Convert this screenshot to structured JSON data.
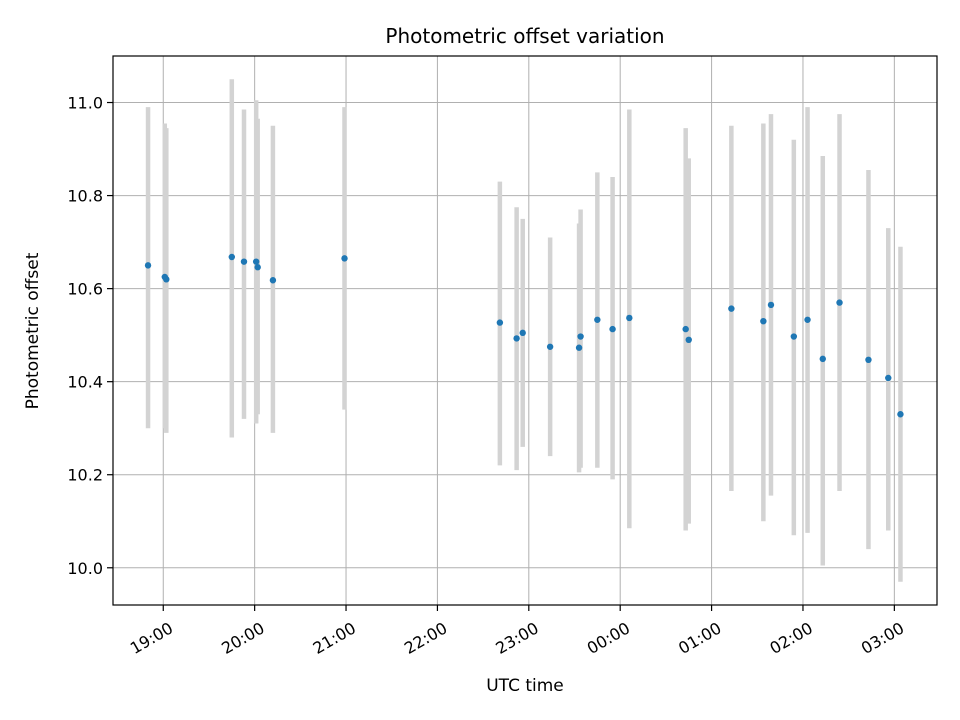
{
  "chart_data": {
    "type": "scatter",
    "title": "Photometric offset variation",
    "xlabel": "UTC time",
    "ylabel": "Photometric offset",
    "x_unit": "UTC time (HH:MM)",
    "xlim": [
      "18:27",
      "03:28"
    ],
    "ylim": [
      9.92,
      11.1
    ],
    "x_ticks": [
      "19:00",
      "20:00",
      "21:00",
      "22:00",
      "23:00",
      "00:00",
      "01:00",
      "02:00",
      "03:00"
    ],
    "y_ticks": [
      10.0,
      10.2,
      10.4,
      10.6,
      10.8,
      11.0
    ],
    "y_tick_labels": [
      "10.0",
      "10.2",
      "10.4",
      "10.6",
      "10.8",
      "11.0"
    ],
    "grid": true,
    "marker_color": "#1f77b4",
    "errorbar_color": "#d3d3d3",
    "points": [
      {
        "t": "18:50",
        "y": 10.65,
        "ylo": 10.3,
        "yhi": 10.99
      },
      {
        "t": "19:01",
        "y": 10.625,
        "ylo": 10.3,
        "yhi": 10.955
      },
      {
        "t": "19:02",
        "y": 10.62,
        "ylo": 10.29,
        "yhi": 10.945
      },
      {
        "t": "19:45",
        "y": 10.668,
        "ylo": 10.28,
        "yhi": 11.05
      },
      {
        "t": "19:53",
        "y": 10.658,
        "ylo": 10.32,
        "yhi": 10.985
      },
      {
        "t": "20:01",
        "y": 10.658,
        "ylo": 10.31,
        "yhi": 11.005
      },
      {
        "t": "20:02",
        "y": 10.646,
        "ylo": 10.33,
        "yhi": 10.965
      },
      {
        "t": "20:12",
        "y": 10.618,
        "ylo": 10.29,
        "yhi": 10.95
      },
      {
        "t": "20:59",
        "y": 10.665,
        "ylo": 10.34,
        "yhi": 10.99
      },
      {
        "t": "22:41",
        "y": 10.527,
        "ylo": 10.22,
        "yhi": 10.83
      },
      {
        "t": "22:52",
        "y": 10.493,
        "ylo": 10.21,
        "yhi": 10.775
      },
      {
        "t": "22:56",
        "y": 10.505,
        "ylo": 10.26,
        "yhi": 10.75
      },
      {
        "t": "23:14",
        "y": 10.475,
        "ylo": 10.24,
        "yhi": 10.71
      },
      {
        "t": "23:33",
        "y": 10.473,
        "ylo": 10.205,
        "yhi": 10.74
      },
      {
        "t": "23:34",
        "y": 10.497,
        "ylo": 10.215,
        "yhi": 10.77
      },
      {
        "t": "23:45",
        "y": 10.533,
        "ylo": 10.215,
        "yhi": 10.85
      },
      {
        "t": "23:55",
        "y": 10.513,
        "ylo": 10.19,
        "yhi": 10.84
      },
      {
        "t": "00:06",
        "y": 10.537,
        "ylo": 10.085,
        "yhi": 10.985
      },
      {
        "t": "00:43",
        "y": 10.513,
        "ylo": 10.08,
        "yhi": 10.945
      },
      {
        "t": "00:45",
        "y": 10.49,
        "ylo": 10.095,
        "yhi": 10.88
      },
      {
        "t": "01:13",
        "y": 10.557,
        "ylo": 10.165,
        "yhi": 10.95
      },
      {
        "t": "01:34",
        "y": 10.53,
        "ylo": 10.1,
        "yhi": 10.955
      },
      {
        "t": "01:39",
        "y": 10.565,
        "ylo": 10.155,
        "yhi": 10.975
      },
      {
        "t": "01:54",
        "y": 10.497,
        "ylo": 10.07,
        "yhi": 10.92
      },
      {
        "t": "02:03",
        "y": 10.533,
        "ylo": 10.075,
        "yhi": 10.99
      },
      {
        "t": "02:13",
        "y": 10.449,
        "ylo": 10.005,
        "yhi": 10.885
      },
      {
        "t": "02:24",
        "y": 10.57,
        "ylo": 10.165,
        "yhi": 10.975
      },
      {
        "t": "02:43",
        "y": 10.447,
        "ylo": 10.04,
        "yhi": 10.855
      },
      {
        "t": "02:56",
        "y": 10.408,
        "ylo": 10.08,
        "yhi": 10.73
      },
      {
        "t": "03:04",
        "y": 10.33,
        "ylo": 9.97,
        "yhi": 10.69
      }
    ]
  }
}
